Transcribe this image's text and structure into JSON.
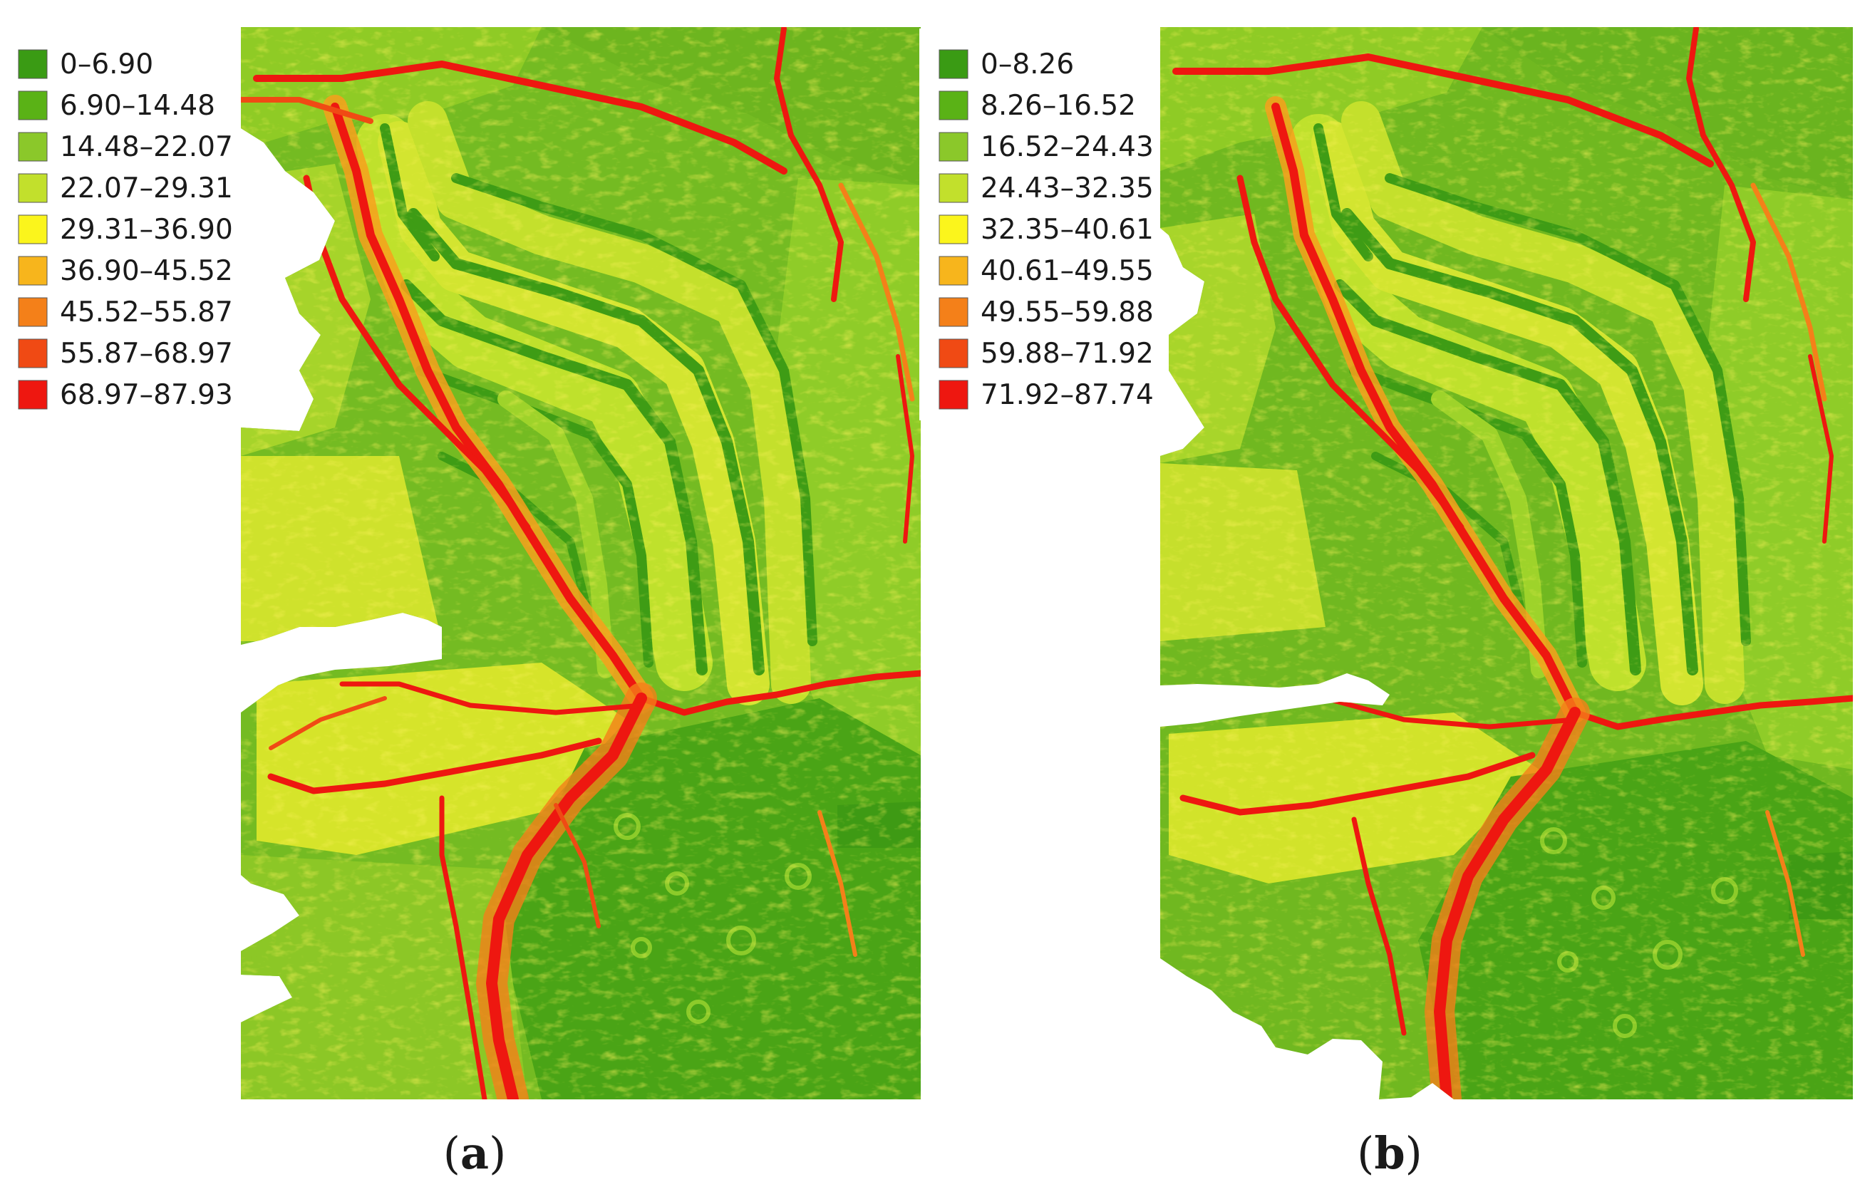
{
  "panels": [
    {
      "id": "a",
      "caption": "a",
      "legend": {
        "items": [
          {
            "label": "0–6.90",
            "color": "#3a9b14"
          },
          {
            "label": "6.90–14.48",
            "color": "#5ab216"
          },
          {
            "label": "14.48–22.07",
            "color": "#8bc82a"
          },
          {
            "label": "22.07–29.31",
            "color": "#c2e02c"
          },
          {
            "label": "29.31–36.90",
            "color": "#fbf51c"
          },
          {
            "label": "36.90–45.52",
            "color": "#f7b51c"
          },
          {
            "label": "45.52–55.87",
            "color": "#f48019"
          },
          {
            "label": "55.87–68.97",
            "color": "#f04a14"
          },
          {
            "label": "68.97–87.93",
            "color": "#ee1710"
          }
        ]
      }
    },
    {
      "id": "b",
      "caption": "b",
      "legend": {
        "items": [
          {
            "label": "0–8.26",
            "color": "#3a9b14"
          },
          {
            "label": "8.26–16.52",
            "color": "#5ab216"
          },
          {
            "label": "16.52–24.43",
            "color": "#8bc82a"
          },
          {
            "label": "24.43–32.35",
            "color": "#c2e02c"
          },
          {
            "label": "32.35–40.61",
            "color": "#fbf51c"
          },
          {
            "label": "40.61–49.55",
            "color": "#f7b51c"
          },
          {
            "label": "49.55–59.88",
            "color": "#f48019"
          },
          {
            "label": "59.88–71.92",
            "color": "#f04a14"
          },
          {
            "label": "71.92–87.74",
            "color": "#ee1710"
          }
        ]
      }
    }
  ]
}
